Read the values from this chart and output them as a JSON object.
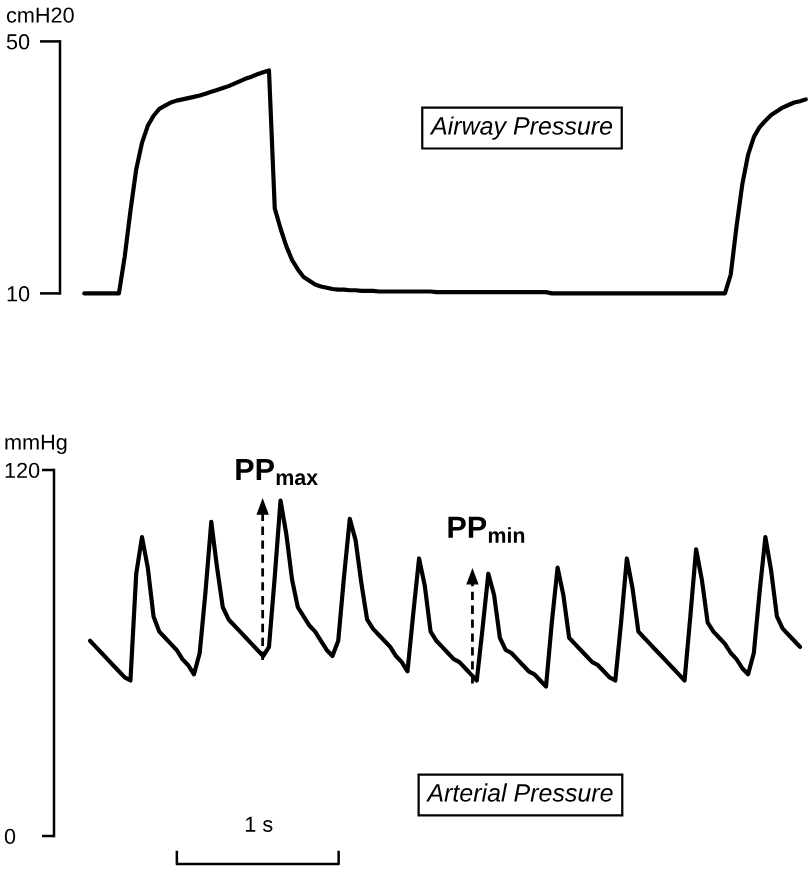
{
  "chart_data": [
    {
      "type": "line",
      "tick_labels": "y",
      "ylabel": "cmH20",
      "categories": [
        null,
        null,
        null,
        null,
        null,
        null,
        null,
        null,
        null,
        null,
        null,
        null,
        null,
        null,
        null,
        null,
        null,
        null,
        null,
        null,
        null,
        null,
        null,
        null,
        null,
        null,
        null,
        null,
        null,
        null,
        null,
        null,
        null,
        null,
        null,
        null,
        null,
        null,
        null,
        null,
        null,
        null,
        null,
        null,
        null,
        null,
        null,
        null,
        null,
        null,
        null,
        null,
        null,
        null,
        null,
        null,
        null,
        null,
        null,
        null,
        null,
        null,
        null,
        null,
        null,
        null,
        null,
        null,
        null,
        null,
        null,
        null,
        null,
        null,
        null,
        null,
        null,
        null,
        null,
        null,
        null,
        null,
        null,
        null,
        null,
        null,
        null,
        null,
        null,
        null,
        null,
        null,
        null,
        null,
        null,
        null,
        null,
        null,
        null,
        null,
        null,
        null,
        null,
        null,
        null,
        null,
        null,
        null,
        null,
        null,
        null,
        null,
        null,
        null,
        null,
        null,
        null,
        null,
        null,
        null,
        null,
        null,
        null,
        null,
        null,
        null
      ],
      "series": [
        {
          "name": "Airway Pressure",
          "color": "#000000",
          "values": [
            10,
            10,
            10,
            10,
            10,
            10,
            10,
            15.8,
            23.1,
            29.7,
            33.9,
            36.6,
            38.2,
            39.3,
            39.8,
            40.3,
            40.6,
            40.8,
            41.0,
            41.2,
            41.4,
            41.7,
            42.0,
            42.3,
            42.6,
            42.9,
            43.3,
            43.7,
            44.1,
            44.4,
            44.8,
            45.1,
            45.4,
            23.5,
            20.3,
            17.5,
            15.3,
            13.8,
            12.6,
            12.0,
            11.4,
            11.1,
            10.9,
            10.7,
            10.6,
            10.6,
            10.5,
            10.5,
            10.4,
            10.4,
            10.4,
            10.3,
            10.3,
            10.3,
            10.3,
            10.3,
            10.3,
            10.3,
            10.3,
            10.3,
            10.3,
            10.2,
            10.2,
            10.2,
            10.2,
            10.2,
            10.2,
            10.2,
            10.2,
            10.2,
            10.2,
            10.2,
            10.2,
            10.2,
            10.2,
            10.2,
            10.2,
            10.2,
            10.2,
            10.2,
            10.2,
            10,
            10,
            10,
            10,
            10,
            10,
            10,
            10,
            10,
            10,
            10,
            10,
            10,
            10,
            10,
            10,
            10,
            10,
            10,
            10,
            10,
            10,
            10,
            10,
            10,
            10,
            10,
            10,
            10,
            10,
            10,
            13,
            20.6,
            27.3,
            32,
            34.8,
            36.4,
            37.4,
            38.3,
            38.9,
            39.5,
            39.9,
            40.3,
            40.5,
            40.8
          ]
        }
      ],
      "ylim": [
        10,
        50
      ],
      "yticks": [
        10,
        50
      ]
    },
    {
      "type": "line",
      "tick_labels": "y",
      "ylabel": "mmHg",
      "categories": [
        null,
        null,
        null,
        null,
        null,
        null,
        null,
        null,
        null,
        null,
        null,
        null,
        null,
        null,
        null,
        null,
        null,
        null,
        null,
        null,
        null,
        null,
        null,
        null,
        null,
        null,
        null,
        null,
        null,
        null,
        null,
        null,
        null,
        null,
        null,
        null,
        null,
        null,
        null,
        null,
        null,
        null,
        null,
        null,
        null,
        null,
        null,
        null,
        null,
        null,
        null,
        null,
        null,
        null,
        null,
        null,
        null,
        null,
        null,
        null,
        null,
        null,
        null,
        null,
        null,
        null,
        null,
        null,
        null,
        null,
        null,
        null,
        null,
        null,
        null,
        null,
        null,
        null,
        null,
        null,
        null,
        null,
        null,
        null,
        null,
        null,
        null,
        null,
        null,
        null,
        null,
        null,
        null,
        null,
        null,
        null,
        null,
        null,
        null,
        null,
        null,
        null,
        null,
        null,
        null,
        null,
        null,
        null,
        null,
        null,
        null,
        null,
        null,
        null,
        null,
        null,
        null,
        null,
        null,
        null,
        null,
        null,
        null,
        null,
        null,
        null
      ],
      "series": [
        {
          "name": "Arterial Pressure",
          "color": "#000000",
          "values": [
            null,
            64,
            62,
            60,
            58,
            56,
            54,
            52,
            51,
            86,
            98,
            88,
            72,
            67,
            65,
            63,
            61,
            58,
            56,
            53,
            60,
            80,
            103,
            88,
            75,
            71,
            69,
            67,
            65,
            63,
            61,
            59,
            62,
            85,
            110,
            99,
            84,
            75,
            72,
            69,
            67,
            64,
            61,
            59,
            64,
            85,
            104,
            97,
            83,
            71,
            68,
            66,
            64,
            62,
            59,
            57,
            54,
            73,
            91,
            82,
            67,
            64,
            62,
            60,
            58,
            57,
            55,
            53,
            51,
            68,
            86,
            79,
            65,
            61,
            60,
            58,
            56,
            54,
            53,
            51,
            49,
            70,
            88,
            79,
            65,
            63,
            61,
            59,
            57,
            56,
            54,
            52,
            51,
            70,
            91,
            81,
            67,
            65,
            63,
            61,
            59,
            57,
            55,
            53,
            51,
            72,
            94,
            84,
            70,
            67,
            65,
            63,
            60,
            58,
            55,
            53,
            60,
            80,
            98,
            87,
            72,
            68,
            66,
            64,
            62,
            null
          ]
        }
      ],
      "ylim": [
        0,
        120
      ],
      "yticks": [
        0,
        120
      ],
      "annotations": [
        "PP$_{max}$",
        "PP$_{min}$",
        "1 s"
      ]
    }
  ]
}
